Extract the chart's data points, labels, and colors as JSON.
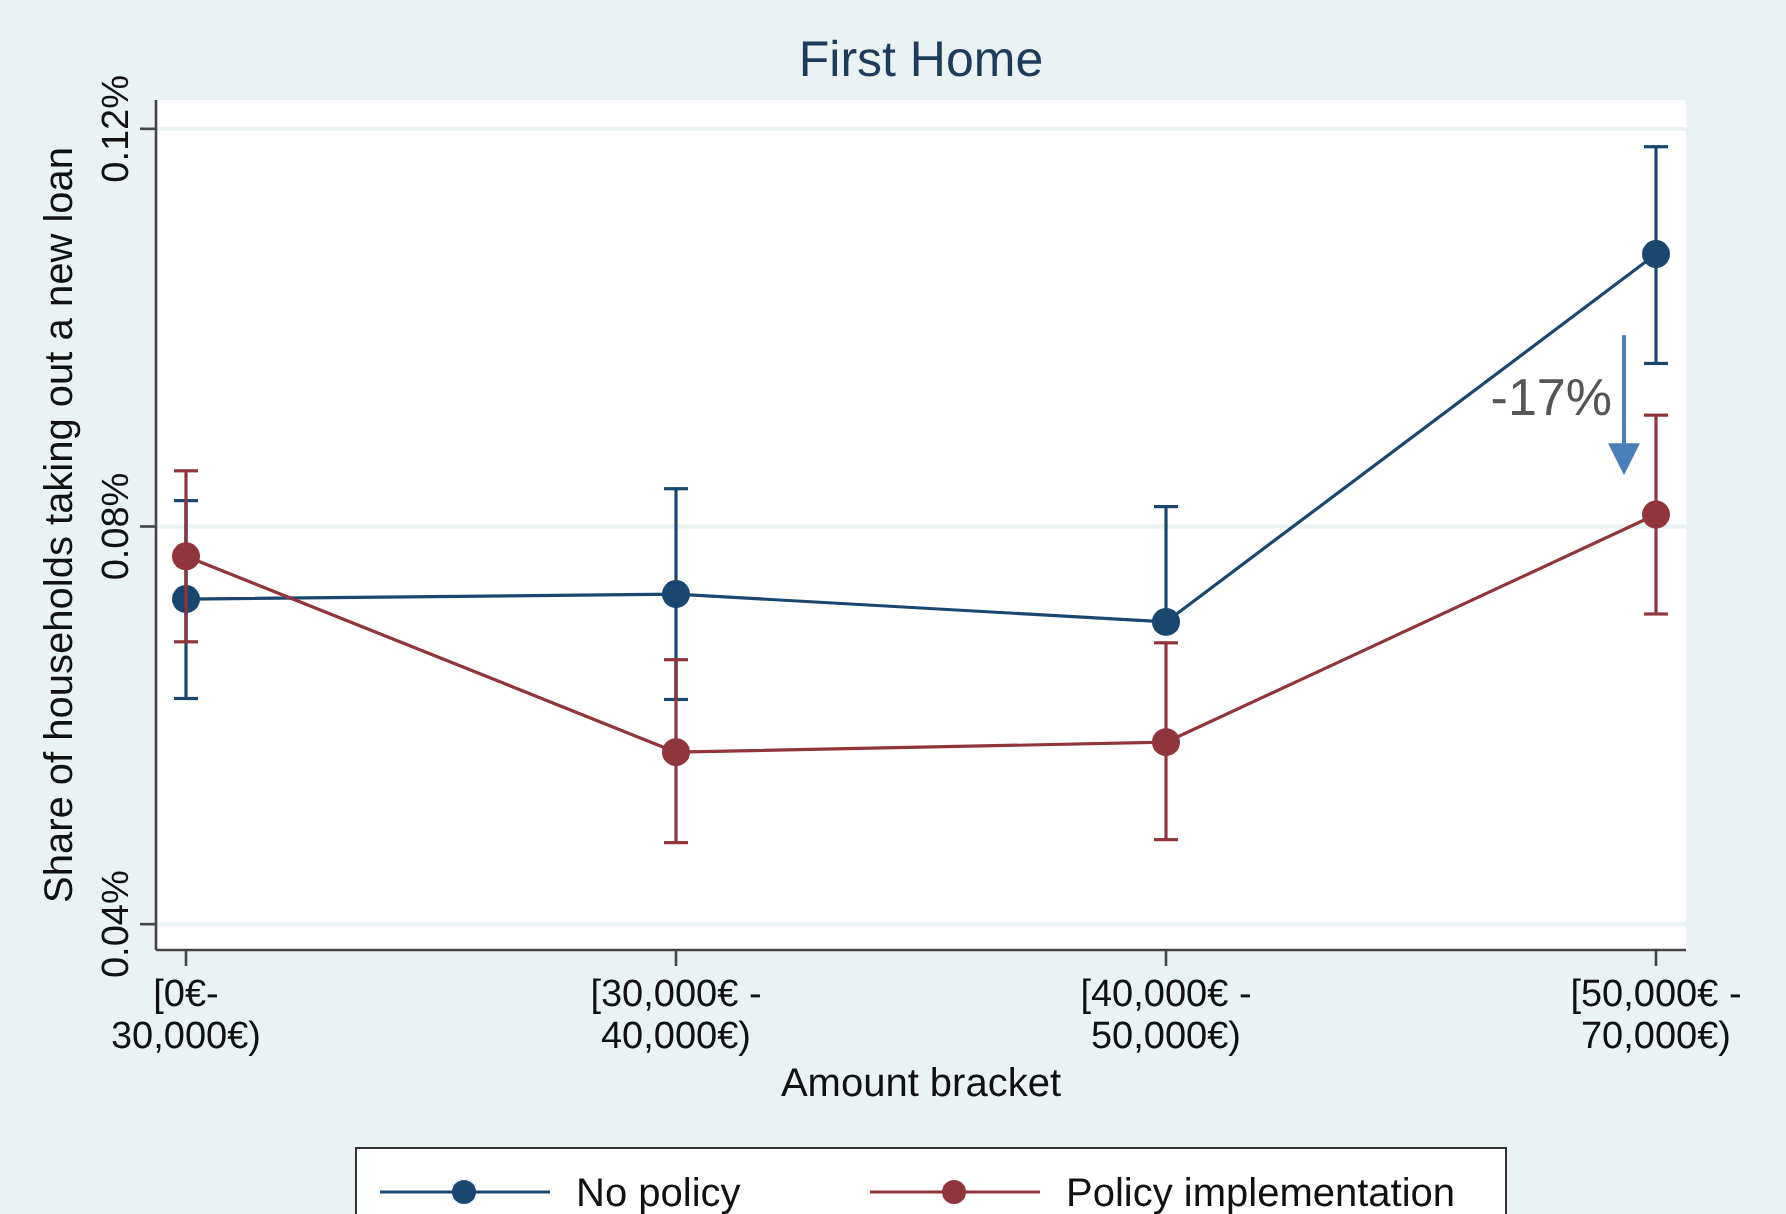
{
  "chart_data": {
    "type": "line",
    "title": "First Home",
    "xlabel": "Amount bracket",
    "ylabel": "Share of households taking out a new loan",
    "categories": [
      "[0€- 30,000€)",
      "[30,000€ - 40,000€)",
      "[40,000€ - 50,000€)",
      "[50,000€ - 70,000€)"
    ],
    "series": [
      {
        "name": "No policy",
        "color": "#1a476f",
        "values": [
          0.0727,
          0.0732,
          0.0704,
          0.1074
        ],
        "errors": [
          [
            0.0627,
            0.0826
          ],
          [
            0.0626,
            0.0838
          ],
          [
            0.0704,
            0.082
          ],
          [
            0.0964,
            0.1182
          ]
        ]
      },
      {
        "name": "Policy implementation",
        "color": "#90353b",
        "values": [
          0.077,
          0.0573,
          0.0583,
          0.0812
        ],
        "errors": [
          [
            0.0684,
            0.0856
          ],
          [
            0.0482,
            0.0666
          ],
          [
            0.0485,
            0.0683
          ],
          [
            0.0712,
            0.0912
          ]
        ]
      }
    ],
    "ylim": [
      0.0374,
      0.1229
    ],
    "yticks": [
      {
        "value": 0.04,
        "label": "0.04%"
      },
      {
        "value": 0.08,
        "label": "0.08%"
      },
      {
        "value": 0.12,
        "label": "0.12%"
      }
    ],
    "grid": "y",
    "legend": "bottom",
    "marker": "circle",
    "line_style": "solid",
    "annotations": [
      {
        "text": "-17%",
        "x": "[50,000€ - 70,000€)",
        "y": 0.092
      }
    ]
  }
}
